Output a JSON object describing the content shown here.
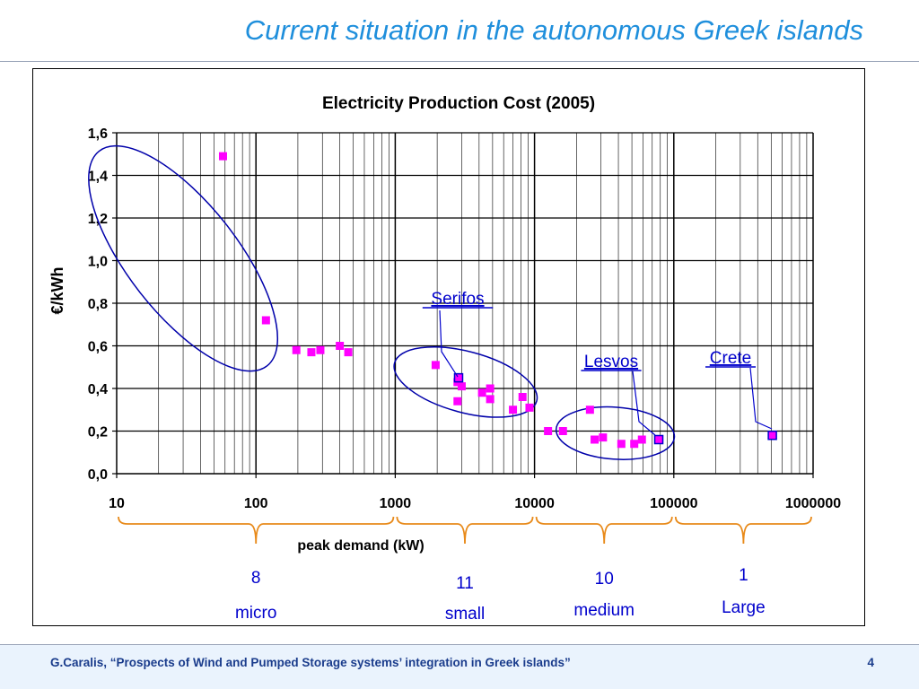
{
  "slide": {
    "title": "Current situation in the autonomous Greek islands",
    "footer_citation": "G.Caralis, “Prospects of Wind and Pumped Storage systems’ integration in Greek islands”",
    "page_number": "4"
  },
  "colors": {
    "title": "#1f8fdc",
    "points": "#ff00ff",
    "highlighted_points": "#0000cc",
    "ellipses": "#0000aa",
    "braces": "#e88a1a",
    "group_labels": "#0000cc"
  },
  "chart_data": {
    "type": "scatter",
    "title": "Electricity Production Cost (2005)",
    "xlabel": "peak demand (kW)",
    "ylabel": "€/kWh",
    "x_scale": "log",
    "xlim": [
      10,
      1000000
    ],
    "ylim": [
      0.0,
      1.6
    ],
    "x_ticks": [
      "10",
      "100",
      "1000",
      "10000",
      "100000",
      "1000000"
    ],
    "y_ticks": [
      "0,0",
      "0,2",
      "0,4",
      "0,6",
      "0,8",
      "1,0",
      "1,2",
      "1,4",
      "1,6"
    ],
    "grid": true,
    "points": [
      {
        "x": 58,
        "y": 1.49
      },
      {
        "x": 118,
        "y": 0.72
      },
      {
        "x": 195,
        "y": 0.58
      },
      {
        "x": 250,
        "y": 0.57
      },
      {
        "x": 290,
        "y": 0.58
      },
      {
        "x": 400,
        "y": 0.6
      },
      {
        "x": 460,
        "y": 0.57
      },
      {
        "x": 1950,
        "y": 0.51
      },
      {
        "x": 2800,
        "y": 0.43
      },
      {
        "x": 3000,
        "y": 0.41
      },
      {
        "x": 2800,
        "y": 0.34
      },
      {
        "x": 4200,
        "y": 0.38
      },
      {
        "x": 4800,
        "y": 0.4
      },
      {
        "x": 4800,
        "y": 0.35
      },
      {
        "x": 7000,
        "y": 0.3
      },
      {
        "x": 8200,
        "y": 0.36
      },
      {
        "x": 9200,
        "y": 0.31
      },
      {
        "x": 12500,
        "y": 0.2
      },
      {
        "x": 16000,
        "y": 0.2
      },
      {
        "x": 25000,
        "y": 0.3
      },
      {
        "x": 27000,
        "y": 0.16
      },
      {
        "x": 31000,
        "y": 0.17
      },
      {
        "x": 42000,
        "y": 0.14
      },
      {
        "x": 52000,
        "y": 0.14
      },
      {
        "x": 59000,
        "y": 0.16
      }
    ],
    "highlighted_points": [
      {
        "name": "Serifos",
        "x": 2850,
        "y": 0.45
      },
      {
        "name": "Lesvos",
        "x": 78000,
        "y": 0.16
      },
      {
        "name": "Crete",
        "x": 510000,
        "y": 0.18
      }
    ],
    "annotations": [
      "Serifos",
      "Lesvos",
      "Crete"
    ],
    "groups": [
      {
        "count": "8",
        "label": "micro"
      },
      {
        "count": "11",
        "label": "small"
      },
      {
        "count": "10",
        "label": "medium"
      },
      {
        "count": "1",
        "label": "Large"
      }
    ]
  }
}
